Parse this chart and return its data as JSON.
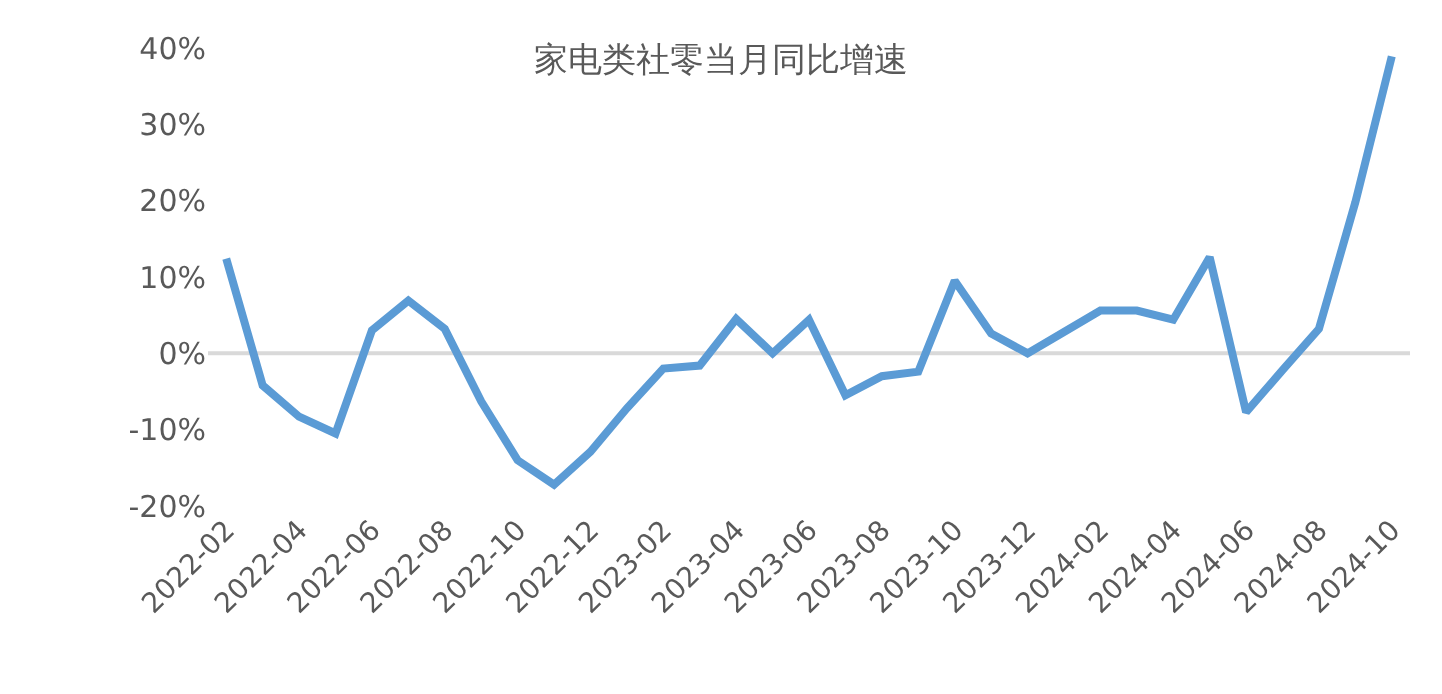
{
  "chart_data": {
    "type": "line",
    "title": "家电类社零当月同比增速",
    "categories": [
      "2022-02",
      null,
      "2022-04",
      null,
      "2022-06",
      null,
      "2022-08",
      null,
      "2022-10",
      null,
      "2022-12",
      null,
      "2023-02",
      null,
      "2023-04",
      null,
      "2023-06",
      null,
      "2023-08",
      null,
      "2023-10",
      null,
      "2023-12",
      null,
      "2024-02",
      null,
      "2024-04",
      null,
      "2024-06",
      null,
      "2024-08",
      null,
      "2024-10"
    ],
    "series": [
      {
        "color": "#5b9bd5",
        "values": [
          12.4,
          -4.2,
          -8.3,
          -10.5,
          3.0,
          6.9,
          3.2,
          -6.3,
          -14.0,
          -17.2,
          -12.9,
          -7.2,
          -2.0,
          -1.6,
          4.5,
          0,
          4.4,
          -5.5,
          -3.0,
          -2.4,
          9.5,
          2.6,
          0,
          2.8,
          5.6,
          5.6,
          4.4,
          12.6,
          -7.7,
          -2.2,
          3.2,
          19.8,
          38.9
        ]
      }
    ],
    "ylim": [
      -20,
      40
    ],
    "yticks": [
      {
        "value": -20,
        "label": "-20%"
      },
      {
        "value": -10,
        "label": "-10%"
      },
      {
        "value": 0,
        "label": "0%"
      },
      {
        "value": 10,
        "label": "10%"
      },
      {
        "value": 20,
        "label": "20%"
      },
      {
        "value": 30,
        "label": "30%"
      },
      {
        "value": 40,
        "label": "40%"
      }
    ],
    "ref_lines": [
      {
        "axis": "y",
        "value": 0,
        "color": "#d9d9d9"
      }
    ],
    "marker": "none",
    "line_style": "solid"
  }
}
